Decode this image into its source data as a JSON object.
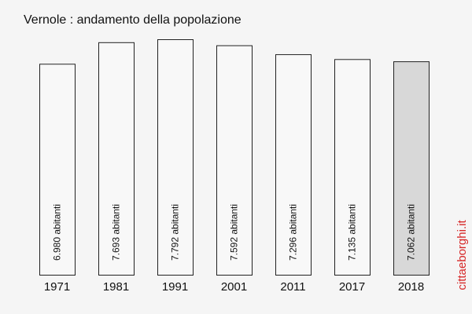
{
  "chart_data": {
    "type": "bar",
    "title": "Vernole : andamento della popolazione",
    "categories": [
      "1971",
      "1981",
      "1991",
      "2001",
      "2011",
      "2017",
      "2018"
    ],
    "values": [
      6980,
      7693,
      7792,
      7592,
      7296,
      7135,
      7062
    ],
    "value_labels": [
      "6.980 abitanti",
      "7.693 abitanti",
      "7.792 abitanti",
      "7.592 abitanti",
      "7.296 abitanti",
      "7.135 abitanti",
      "7.062 abitanti"
    ],
    "colors": [
      "#f8f8f8",
      "#f8f8f8",
      "#f8f8f8",
      "#f8f8f8",
      "#f8f8f8",
      "#f8f8f8",
      "#d8d8d8"
    ],
    "watermark": "cittaeborghi.it"
  }
}
